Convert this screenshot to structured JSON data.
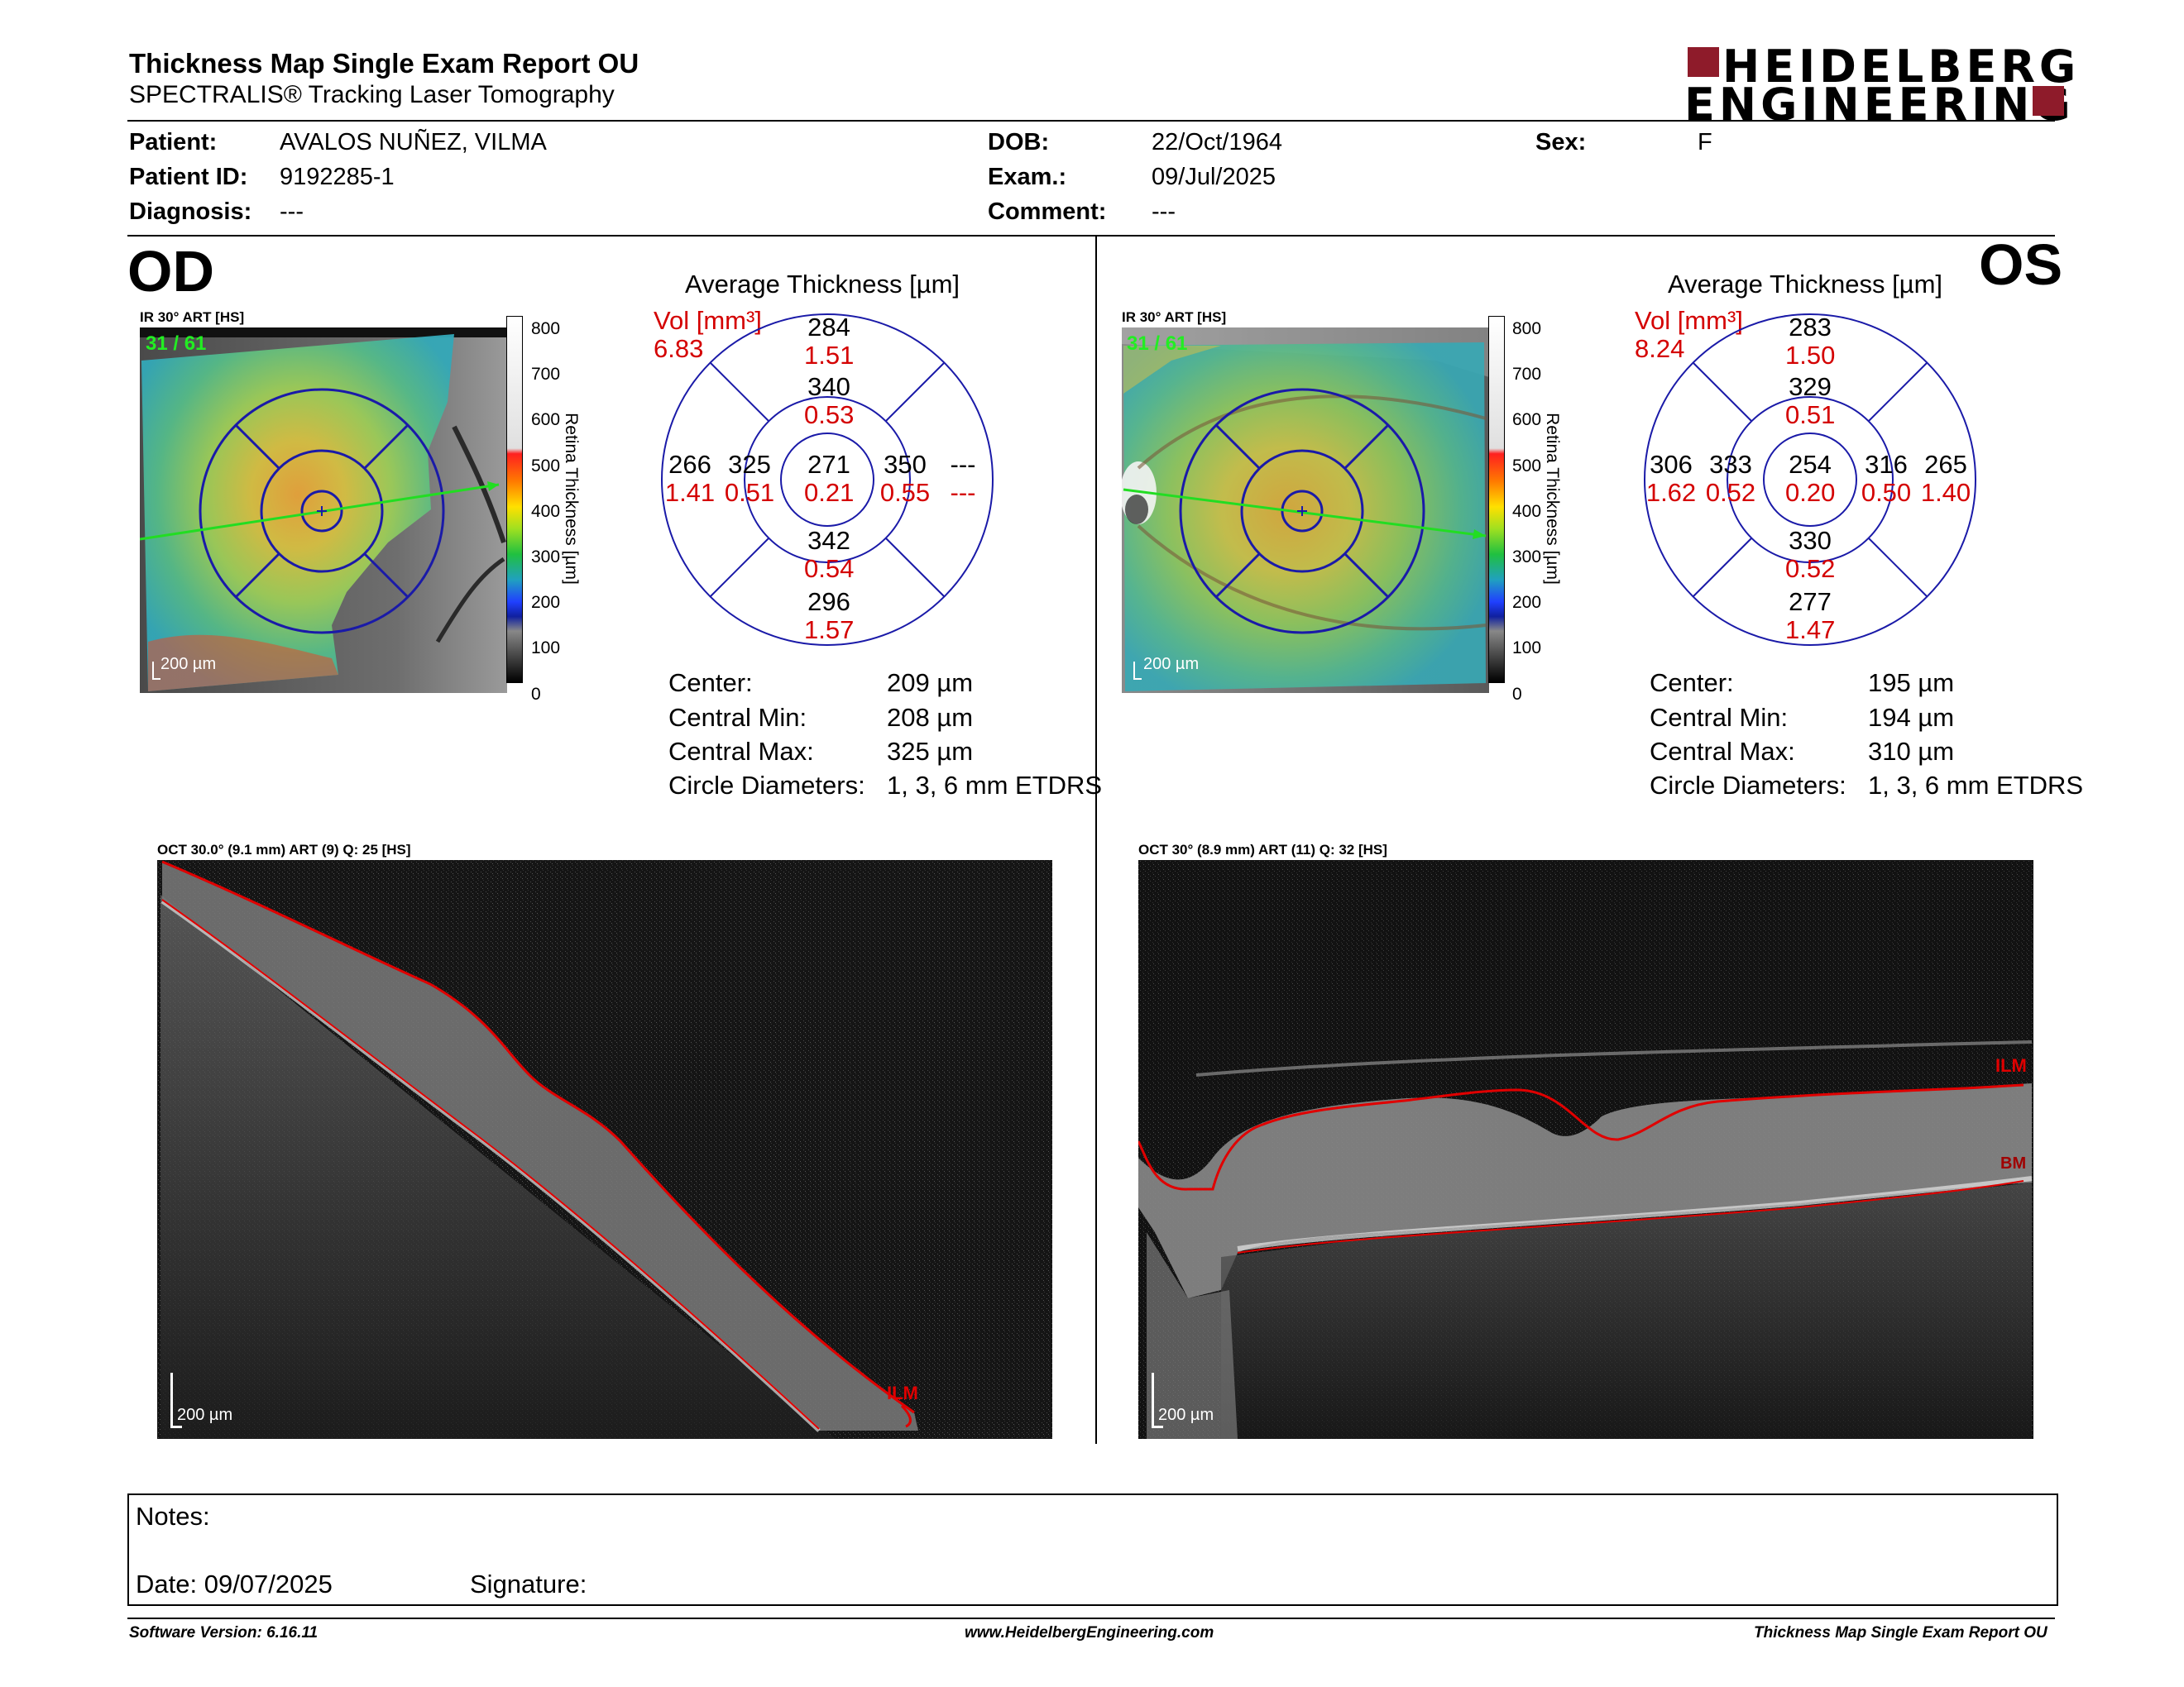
{
  "header": {
    "title": "Thickness Map Single Exam Report OU",
    "subtitle": "SPECTRALIS® Tracking Laser Tomography",
    "logo_line1": "HEIDELBERG",
    "logo_line2": "ENGINEERING"
  },
  "patient": {
    "patient_label": "Patient:",
    "patient_value": "AVALOS NUÑEZ, VILMA",
    "id_label": "Patient ID:",
    "id_value": "9192285-1",
    "diagnosis_label": "Diagnosis:",
    "diagnosis_value": "---",
    "dob_label": "DOB:",
    "dob_value": "22/Oct/1964",
    "exam_label": "Exam.:",
    "exam_value": "09/Jul/2025",
    "comment_label": "Comment:",
    "comment_value": "---",
    "sex_label": "Sex:",
    "sex_value": "F"
  },
  "scale": {
    "caption": "Retina Thickness [µm]",
    "ticks": [
      "800",
      "700",
      "600",
      "500",
      "400",
      "300",
      "200",
      "100",
      "0"
    ]
  },
  "od": {
    "eye_label": "OD",
    "ir_caption": "IR 30° ART [HS]",
    "frame_label": "31 / 61",
    "ir_scalebar": "200 µm",
    "avg_title": "Average Thickness [µm]",
    "vol_label": "Vol [mm³]",
    "vol_value": "6.83",
    "etdrs": {
      "center": [
        "271",
        "0.21"
      ],
      "inner_top": [
        "340",
        "0.53"
      ],
      "inner_bottom": [
        "342",
        "0.54"
      ],
      "inner_left": [
        "325",
        "0.51"
      ],
      "inner_right": [
        "350",
        "0.55"
      ],
      "outer_top": [
        "284",
        "1.51"
      ],
      "outer_bottom": [
        "296",
        "1.57"
      ],
      "outer_left": [
        "266",
        "1.41"
      ],
      "outer_right": [
        "---",
        "---"
      ]
    },
    "stats": [
      {
        "label": "Center:",
        "value": "209 µm"
      },
      {
        "label": "Central Min:",
        "value": "208 µm"
      },
      {
        "label": "Central Max:",
        "value": "325 µm"
      },
      {
        "label": "Circle Diameters:",
        "value": "1, 3, 6 mm ETDRS"
      }
    ],
    "oct_caption": "OCT 30.0° (9.1 mm) ART (9) Q: 25 [HS]",
    "oct_ilm": "ILM",
    "oct_scalebar": "200 µm"
  },
  "os": {
    "eye_label": "OS",
    "ir_caption": "IR 30° ART [HS]",
    "frame_label": "31 / 61",
    "ir_scalebar": "200 µm",
    "avg_title": "Average Thickness [µm]",
    "vol_label": "Vol [mm³]",
    "vol_value": "8.24",
    "etdrs": {
      "center": [
        "254",
        "0.20"
      ],
      "inner_top": [
        "329",
        "0.51"
      ],
      "inner_bottom": [
        "330",
        "0.52"
      ],
      "inner_left": [
        "333",
        "0.52"
      ],
      "inner_right": [
        "316",
        "0.50"
      ],
      "outer_top": [
        "283",
        "1.50"
      ],
      "outer_bottom": [
        "277",
        "1.47"
      ],
      "outer_left": [
        "306",
        "1.62"
      ],
      "outer_right": [
        "265",
        "1.40"
      ]
    },
    "stats": [
      {
        "label": "Center:",
        "value": "195 µm"
      },
      {
        "label": "Central Min:",
        "value": "194 µm"
      },
      {
        "label": "Central Max:",
        "value": "310 µm"
      },
      {
        "label": "Circle Diameters:",
        "value": "1, 3, 6 mm ETDRS"
      }
    ],
    "oct_caption": "OCT 30° (8.9 mm) ART (11) Q: 32 [HS]",
    "oct_ilm": "ILM",
    "oct_bm": "BM",
    "oct_scalebar": "200 µm"
  },
  "notes": {
    "notes_label": "Notes:",
    "date_label": "Date: 09/07/2025",
    "signature_label": "Signature:"
  },
  "footer": {
    "software": "Software Version: 6.16.11",
    "website": "www.HeidelbergEngineering.com",
    "report": "Thickness Map Single Exam Report OU"
  },
  "colors": {
    "accent_red": "#d40000",
    "logo_red": "#8e1b2a",
    "etdrs_blue": "#1a1aa8",
    "scan_green": "#22dd22"
  }
}
